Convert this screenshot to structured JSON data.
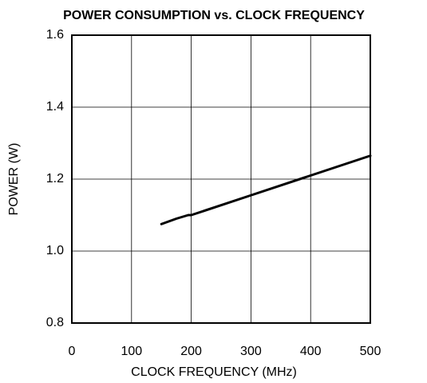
{
  "chart_data": {
    "type": "line",
    "title": "POWER CONSUMPTION vs. CLOCK FREQUENCY",
    "x_label": "CLOCK FREQUENCY (MHz)",
    "y_label": "POWER (W)",
    "x": [
      150,
      175,
      195,
      200,
      300,
      400,
      500
    ],
    "series": [
      {
        "name": "Power",
        "color": "#000000",
        "values": [
          1.075,
          1.09,
          1.1,
          1.1,
          1.155,
          1.21,
          1.265
        ]
      }
    ],
    "xlim": [
      0,
      500
    ],
    "xticks": [
      0,
      100,
      200,
      300,
      400,
      500
    ],
    "ylim": [
      0.8,
      1.6
    ],
    "yticks": [
      0.8,
      {
        "value": 1,
        "label": "1.0"
      },
      1.2,
      1.4,
      1.6
    ],
    "grid": true
  }
}
